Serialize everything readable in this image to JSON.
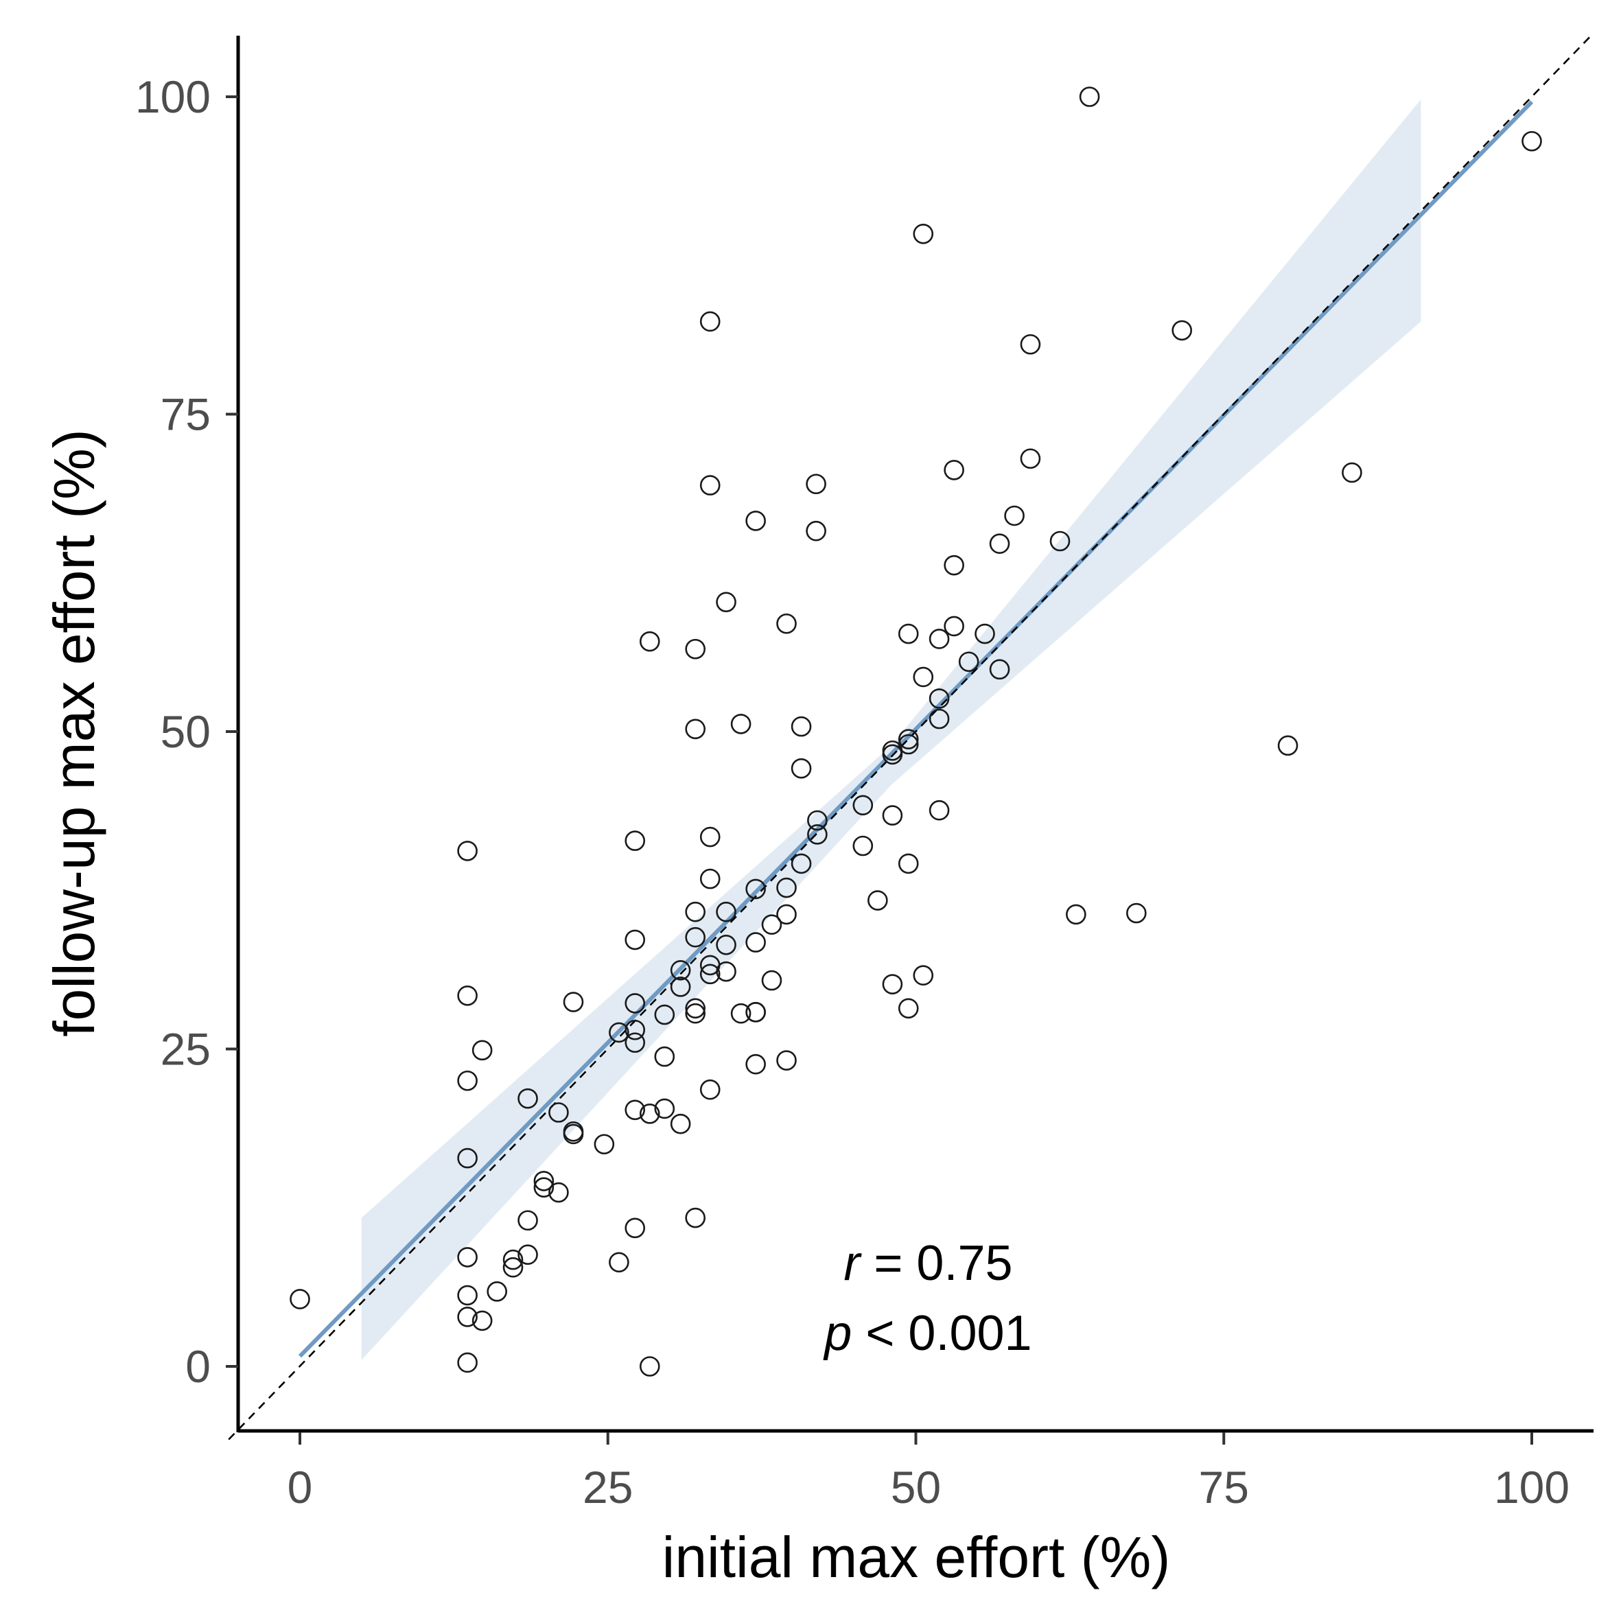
{
  "chart_data": {
    "type": "scatter",
    "xlabel": "initial max effort (%)",
    "ylabel": "follow-up max effort (%)",
    "xlim": [
      -5,
      105
    ],
    "ylim": [
      -5,
      105
    ],
    "xticks": [
      0,
      25,
      50,
      75,
      100
    ],
    "yticks": [
      0,
      25,
      50,
      75,
      100
    ],
    "x_tick_labels": [
      "0",
      "25",
      "50",
      "75",
      "100"
    ],
    "y_tick_labels": [
      "0",
      "25",
      "50",
      "75",
      "100"
    ],
    "grid": false,
    "points": [
      [
        0,
        5.3
      ],
      [
        64.1,
        100
      ],
      [
        100,
        96.5
      ],
      [
        50.6,
        89.2
      ],
      [
        33.3,
        82.3
      ],
      [
        71.6,
        81.6
      ],
      [
        59.3,
        80.5
      ],
      [
        59.3,
        71.5
      ],
      [
        85.4,
        70.4
      ],
      [
        53.1,
        70.6
      ],
      [
        33.3,
        69.4
      ],
      [
        41.9,
        69.5
      ],
      [
        37,
        66.6
      ],
      [
        58,
        67
      ],
      [
        41.9,
        65.8
      ],
      [
        56.8,
        64.8
      ],
      [
        61.7,
        65
      ],
      [
        53.1,
        63.1
      ],
      [
        34.6,
        60.2
      ],
      [
        39.5,
        58.5
      ],
      [
        49.4,
        57.7
      ],
      [
        51.9,
        57.3
      ],
      [
        53.1,
        58.3
      ],
      [
        55.6,
        57.7
      ],
      [
        28.4,
        57.1
      ],
      [
        32.1,
        56.5
      ],
      [
        54.3,
        55.5
      ],
      [
        56.8,
        54.9
      ],
      [
        50.6,
        54.3
      ],
      [
        51.9,
        52.6
      ],
      [
        51.9,
        51
      ],
      [
        35.8,
        50.6
      ],
      [
        40.7,
        50.4
      ],
      [
        32.1,
        50.2
      ],
      [
        49.4,
        49.4
      ],
      [
        49.4,
        49
      ],
      [
        48.1,
        48.5
      ],
      [
        48.1,
        48.2
      ],
      [
        80.2,
        48.9
      ],
      [
        40.7,
        47.1
      ],
      [
        45.7,
        44.2
      ],
      [
        51.9,
        43.8
      ],
      [
        48.1,
        43.4
      ],
      [
        42,
        43
      ],
      [
        42,
        41.9
      ],
      [
        33.3,
        41.7
      ],
      [
        27.2,
        41.4
      ],
      [
        13.6,
        40.6
      ],
      [
        45.7,
        41
      ],
      [
        49.4,
        39.6
      ],
      [
        40.7,
        39.6
      ],
      [
        33.3,
        38.4
      ],
      [
        37,
        37.6
      ],
      [
        39.5,
        37.7
      ],
      [
        46.9,
        36.7
      ],
      [
        32.1,
        35.8
      ],
      [
        34.6,
        35.8
      ],
      [
        39.5,
        35.6
      ],
      [
        63,
        35.6
      ],
      [
        67.9,
        35.7
      ],
      [
        38.3,
        34.8
      ],
      [
        32.1,
        33.8
      ],
      [
        27.2,
        33.6
      ],
      [
        34.6,
        33.2
      ],
      [
        37,
        33.4
      ],
      [
        33.3,
        31.6
      ],
      [
        30.9,
        31.2
      ],
      [
        33.3,
        30.9
      ],
      [
        34.6,
        31.1
      ],
      [
        30.9,
        29.9
      ],
      [
        38.3,
        30.4
      ],
      [
        50.6,
        30.8
      ],
      [
        48.1,
        30.1
      ],
      [
        13.6,
        29.2
      ],
      [
        22.2,
        28.7
      ],
      [
        27.2,
        28.6
      ],
      [
        32.1,
        28.2
      ],
      [
        32.1,
        27.8
      ],
      [
        29.6,
        27.7
      ],
      [
        35.8,
        27.8
      ],
      [
        37,
        27.9
      ],
      [
        37,
        27.9
      ],
      [
        49.4,
        28.2
      ],
      [
        25.9,
        26.3
      ],
      [
        27.2,
        26.5
      ],
      [
        27.2,
        25.5
      ],
      [
        14.8,
        24.9
      ],
      [
        29.6,
        24.4
      ],
      [
        39.5,
        24.1
      ],
      [
        37,
        23.8
      ],
      [
        13.6,
        22.5
      ],
      [
        33.3,
        21.8
      ],
      [
        18.5,
        21.1
      ],
      [
        27.2,
        20.2
      ],
      [
        28.4,
        19.9
      ],
      [
        29.6,
        20.3
      ],
      [
        21,
        20
      ],
      [
        30.9,
        19.1
      ],
      [
        22.2,
        18.5
      ],
      [
        22.2,
        18.3
      ],
      [
        24.7,
        17.5
      ],
      [
        13.6,
        16.4
      ],
      [
        19.8,
        14.6
      ],
      [
        19.8,
        14.1
      ],
      [
        21,
        13.7
      ],
      [
        32.1,
        11.7
      ],
      [
        18.5,
        11.5
      ],
      [
        27.2,
        10.9
      ],
      [
        13.6,
        8.6
      ],
      [
        18.5,
        8.8
      ],
      [
        17.3,
        8.4
      ],
      [
        17.3,
        7.8
      ],
      [
        25.9,
        8.2
      ],
      [
        16,
        5.9
      ],
      [
        13.6,
        5.6
      ],
      [
        13.6,
        3.9
      ],
      [
        14.8,
        3.6
      ],
      [
        13.6,
        0.3
      ],
      [
        28.4,
        0
      ]
    ],
    "fit_line": {
      "x": [
        0,
        100
      ],
      "y": [
        0.8,
        99.6
      ]
    },
    "ci_band": {
      "x": [
        5,
        48,
        91
      ],
      "lower": [
        0.5,
        45.8,
        82.3
      ],
      "upper": [
        11.7,
        48.9,
        99.8
      ]
    },
    "identity_line": {
      "x": [
        -5,
        105
      ],
      "y": [
        -5,
        105
      ]
    },
    "annotations": {
      "r_symbol": "r",
      "r_rest": " = 0.75",
      "p_symbol": "p",
      "p_rest": " < 0.001",
      "position": [
        51,
        2.5
      ]
    },
    "colors": {
      "fit_line": "#6f9ac3",
      "ci_band": "#dde8f1",
      "points": "#1a1a1a",
      "identity_line": "#000000"
    }
  }
}
